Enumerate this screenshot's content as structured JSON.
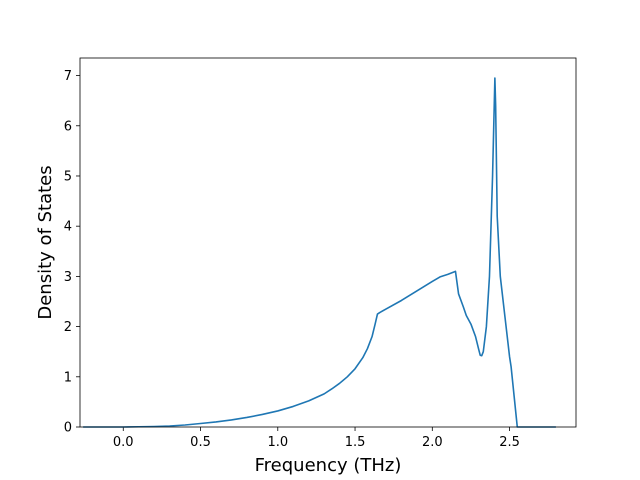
{
  "chart_data": {
    "type": "line",
    "title": "",
    "xlabel": "Frequency (THz)",
    "ylabel": "Density of States",
    "xlim": [
      -0.28,
      2.93
    ],
    "ylim": [
      0,
      7.35
    ],
    "xticks": [
      0.0,
      0.5,
      1.0,
      1.5,
      2.0,
      2.5
    ],
    "xtick_labels": [
      "0.0",
      "0.5",
      "1.0",
      "1.5",
      "2.0",
      "2.5"
    ],
    "yticks": [
      0,
      1,
      2,
      3,
      4,
      5,
      6,
      7
    ],
    "ytick_labels": [
      "0",
      "1",
      "2",
      "3",
      "4",
      "5",
      "6",
      "7"
    ],
    "grid": false,
    "line_color": "#1f77b4",
    "series": [
      {
        "x": [
          -0.26,
          0.0,
          0.1,
          0.2,
          0.3,
          0.4,
          0.5,
          0.6,
          0.7,
          0.8,
          0.9,
          1.0,
          1.1,
          1.2,
          1.3,
          1.35,
          1.4,
          1.45,
          1.5,
          1.55,
          1.58,
          1.61,
          1.63,
          1.645,
          1.66,
          1.7,
          1.8,
          1.9,
          2.0,
          2.05,
          2.1,
          2.15,
          2.17,
          2.2,
          2.22,
          2.25,
          2.28,
          2.3,
          2.31,
          2.32,
          2.33,
          2.35,
          2.37,
          2.39,
          2.405,
          2.41,
          2.42,
          2.44,
          2.47,
          2.5,
          2.51,
          2.53,
          2.55,
          2.6,
          2.8
        ],
        "y": [
          0,
          0,
          0.005,
          0.01,
          0.02,
          0.04,
          0.07,
          0.1,
          0.14,
          0.19,
          0.25,
          0.32,
          0.41,
          0.52,
          0.66,
          0.76,
          0.87,
          1.0,
          1.16,
          1.38,
          1.56,
          1.8,
          2.05,
          2.25,
          2.28,
          2.35,
          2.52,
          2.71,
          2.9,
          2.99,
          3.04,
          3.1,
          2.65,
          2.4,
          2.22,
          2.05,
          1.8,
          1.55,
          1.43,
          1.42,
          1.5,
          2.0,
          3.0,
          5.0,
          6.95,
          6.4,
          4.2,
          3.0,
          2.2,
          1.4,
          1.2,
          0.6,
          0.0,
          0.0,
          0.0
        ]
      }
    ]
  }
}
